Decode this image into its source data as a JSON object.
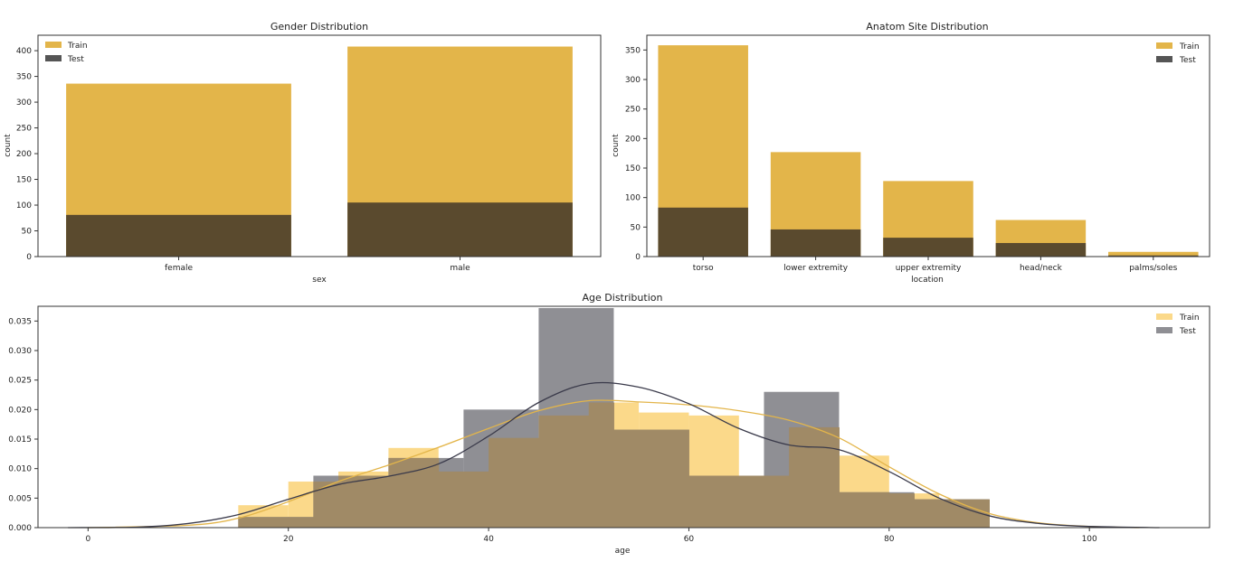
{
  "colors": {
    "train": "#e3b54a",
    "test": "#5a4a2e",
    "test_legend": "#555555",
    "age_train": "#fbd98a",
    "age_test": "#8f8f94",
    "age_overlap": "#a08a66",
    "age_train_kde": "#e3b54a",
    "age_test_kde": "#3a3a4a"
  },
  "chart_data": [
    {
      "type": "bar",
      "title": "Gender Distribution",
      "xlabel": "sex",
      "ylabel": "count",
      "categories": [
        "female",
        "male"
      ],
      "series": [
        {
          "name": "Train",
          "values": [
            336,
            408
          ]
        },
        {
          "name": "Test",
          "values": [
            81,
            105
          ]
        }
      ],
      "ylim": [
        0,
        430
      ],
      "yticks": [
        0,
        50,
        100,
        150,
        200,
        250,
        300,
        350,
        400
      ],
      "legend": "top-left",
      "grid": false
    },
    {
      "type": "bar",
      "title": "Anatom Site Distribution",
      "xlabel": "location",
      "ylabel": "count",
      "categories": [
        "torso",
        "lower extremity",
        "upper extremity",
        "head/neck",
        "palms/soles"
      ],
      "series": [
        {
          "name": "Train",
          "values": [
            358,
            177,
            128,
            62,
            8
          ]
        },
        {
          "name": "Test",
          "values": [
            83,
            46,
            32,
            23,
            2
          ]
        }
      ],
      "ylim": [
        0,
        375
      ],
      "yticks": [
        0,
        50,
        100,
        150,
        200,
        250,
        300,
        350
      ],
      "legend": "top-right",
      "grid": false
    },
    {
      "type": "histogram",
      "title": "Age Distribution",
      "xlabel": "age",
      "ylabel": "",
      "xlim": [
        -5,
        112
      ],
      "ylim": [
        0,
        0.0375
      ],
      "xticks": [
        0,
        20,
        40,
        60,
        80,
        100
      ],
      "yticks": [
        0.0,
        0.005,
        0.01,
        0.015,
        0.02,
        0.025,
        0.03,
        0.035
      ],
      "legend": "top-right",
      "grid": false,
      "series": [
        {
          "name": "Train",
          "bin_edges": [
            15,
            20,
            25,
            30,
            35,
            40,
            45,
            50,
            55,
            60,
            65,
            70,
            75,
            80,
            85,
            90
          ],
          "values": [
            0.0038,
            0.0078,
            0.0095,
            0.0135,
            0.0095,
            0.0152,
            0.019,
            0.0212,
            0.0195,
            0.019,
            0.0088,
            0.017,
            0.0122,
            0.0058,
            0.0048
          ],
          "kde": [
            [
              0,
              0
            ],
            [
              10,
              0.0004
            ],
            [
              15,
              0.0016
            ],
            [
              20,
              0.0044
            ],
            [
              25,
              0.0078
            ],
            [
              30,
              0.0106
            ],
            [
              35,
              0.0136
            ],
            [
              40,
              0.0168
            ],
            [
              45,
              0.0198
            ],
            [
              50,
              0.0215
            ],
            [
              55,
              0.0213
            ],
            [
              60,
              0.0208
            ],
            [
              65,
              0.0198
            ],
            [
              70,
              0.0182
            ],
            [
              75,
              0.0152
            ],
            [
              80,
              0.0103
            ],
            [
              85,
              0.0057
            ],
            [
              90,
              0.0024
            ],
            [
              95,
              0.0008
            ],
            [
              100,
              0.0002
            ],
            [
              105,
              0
            ]
          ]
        },
        {
          "name": "Test",
          "bin_edges": [
            15,
            22.5,
            30,
            37.5,
            45,
            52.5,
            60,
            67.5,
            75,
            82.5,
            90
          ],
          "values": [
            0.0018,
            0.0088,
            0.0118,
            0.02,
            0.0372,
            0.0166,
            0.0088,
            0.023,
            0.006,
            0.0048
          ],
          "kde": [
            [
              -2,
              0
            ],
            [
              5,
              0.0001
            ],
            [
              10,
              0.0007
            ],
            [
              15,
              0.0022
            ],
            [
              20,
              0.0048
            ],
            [
              25,
              0.0073
            ],
            [
              30,
              0.0087
            ],
            [
              35,
              0.0108
            ],
            [
              40,
              0.0155
            ],
            [
              45,
              0.0212
            ],
            [
              50,
              0.0244
            ],
            [
              55,
              0.0238
            ],
            [
              60,
              0.021
            ],
            [
              65,
              0.0168
            ],
            [
              70,
              0.014
            ],
            [
              75,
              0.0132
            ],
            [
              80,
              0.0095
            ],
            [
              85,
              0.005
            ],
            [
              90,
              0.002
            ],
            [
              95,
              0.0007
            ],
            [
              100,
              0.0002
            ],
            [
              107,
              0
            ]
          ]
        }
      ]
    }
  ]
}
